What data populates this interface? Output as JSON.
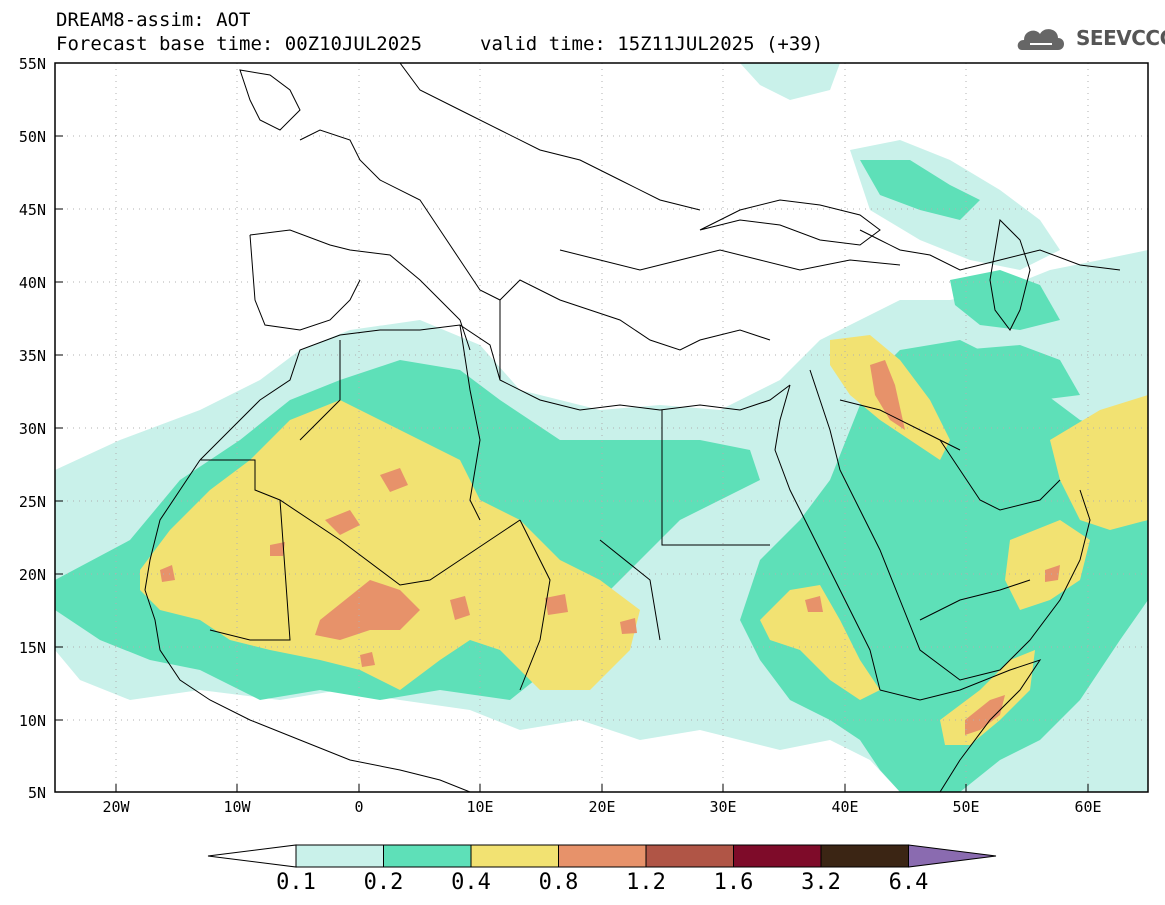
{
  "header": {
    "title_line1": "DREAM8-assim: AOT",
    "title_line2": "Forecast base time: 00Z10JUL2025",
    "valid_time": "valid time: 15Z11JUL2025 (+39)"
  },
  "logo": {
    "text": "SEEVCCC",
    "icon": "cloud-icon"
  },
  "axes": {
    "lat_labels": [
      "55N",
      "50N",
      "45N",
      "40N",
      "35N",
      "30N",
      "25N",
      "20N",
      "15N",
      "10N",
      "5N"
    ],
    "lon_labels": [
      "20W",
      "10W",
      "0",
      "10E",
      "20E",
      "30E",
      "40E",
      "50E",
      "60E"
    ]
  },
  "colorbar": {
    "labels": [
      "0.1",
      "0.2",
      "0.4",
      "0.8",
      "1.2",
      "1.6",
      "3.2",
      "6.4"
    ],
    "colors": [
      "#ffffff",
      "#c9f1ea",
      "#5ee0b8",
      "#f2e272",
      "#e7926a",
      "#b05546",
      "#7e0b29",
      "#3b2514",
      "#8a6bb0"
    ]
  },
  "colors": {
    "light_aqua": "#c9f1ea",
    "green": "#5ee0b8",
    "yellow": "#f2e272",
    "orange": "#e7926a",
    "red_brown": "#b05546"
  }
}
